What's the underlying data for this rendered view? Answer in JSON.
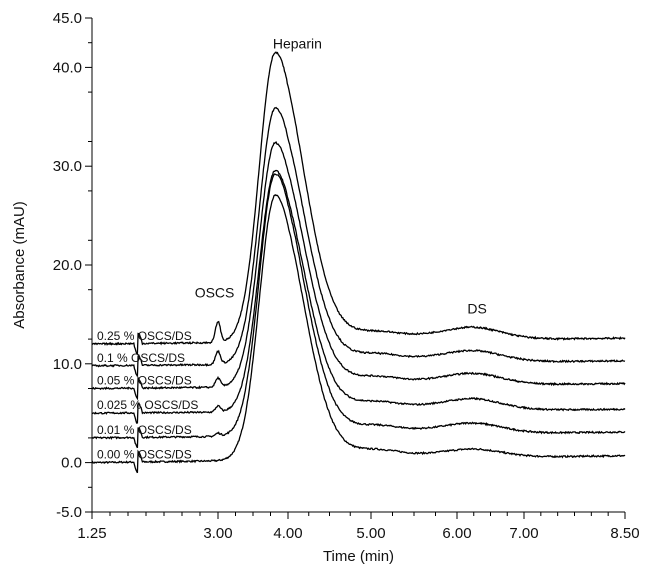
{
  "chart_data": {
    "type": "line",
    "xlabel": "Time (min)",
    "ylabel": "Absorbance (mAU)",
    "x_scale": "nonlinear",
    "xlim": [
      1.25,
      8.5
    ],
    "ylim": [
      -5.0,
      45.0
    ],
    "x_ticks": [
      "1.25",
      "3.00",
      "4.00",
      "5.00",
      "6.00",
      "7.00",
      "8.50"
    ],
    "y_ticks": [
      "-5.0",
      "0.0",
      "10.0",
      "20.0",
      "30.0",
      "40.0",
      "45.0"
    ],
    "grid": false,
    "annotations": [
      "Heparin",
      "OSCS",
      "DS"
    ],
    "series": [
      {
        "name": "0.00 % OSCS/DS",
        "baseline": 0.0,
        "peak": 26.8,
        "oscs_bump": 0.0,
        "ds_bump": 0.9,
        "final": 0.7
      },
      {
        "name": "0.01 % OSCS/DS",
        "baseline": 2.5,
        "peak": 29.0,
        "oscs_bump": 0.3,
        "ds_bump": 1.1,
        "final": 3.1
      },
      {
        "name": "0.025 % OSCS/DS",
        "baseline": 5.0,
        "peak": 29.4,
        "oscs_bump": 0.6,
        "ds_bump": 1.2,
        "final": 5.4
      },
      {
        "name": "0.05 % OSCS/DS",
        "baseline": 7.5,
        "peak": 32.2,
        "oscs_bump": 0.9,
        "ds_bump": 1.2,
        "final": 8.0
      },
      {
        "name": "0.1 % OSCS/DS",
        "baseline": 9.8,
        "peak": 35.7,
        "oscs_bump": 1.3,
        "ds_bump": 1.2,
        "final": 10.3
      },
      {
        "name": "0.25 % OSCS/DS",
        "baseline": 12.0,
        "peak": 41.3,
        "oscs_bump": 2.1,
        "ds_bump": 1.3,
        "final": 12.6
      }
    ]
  }
}
